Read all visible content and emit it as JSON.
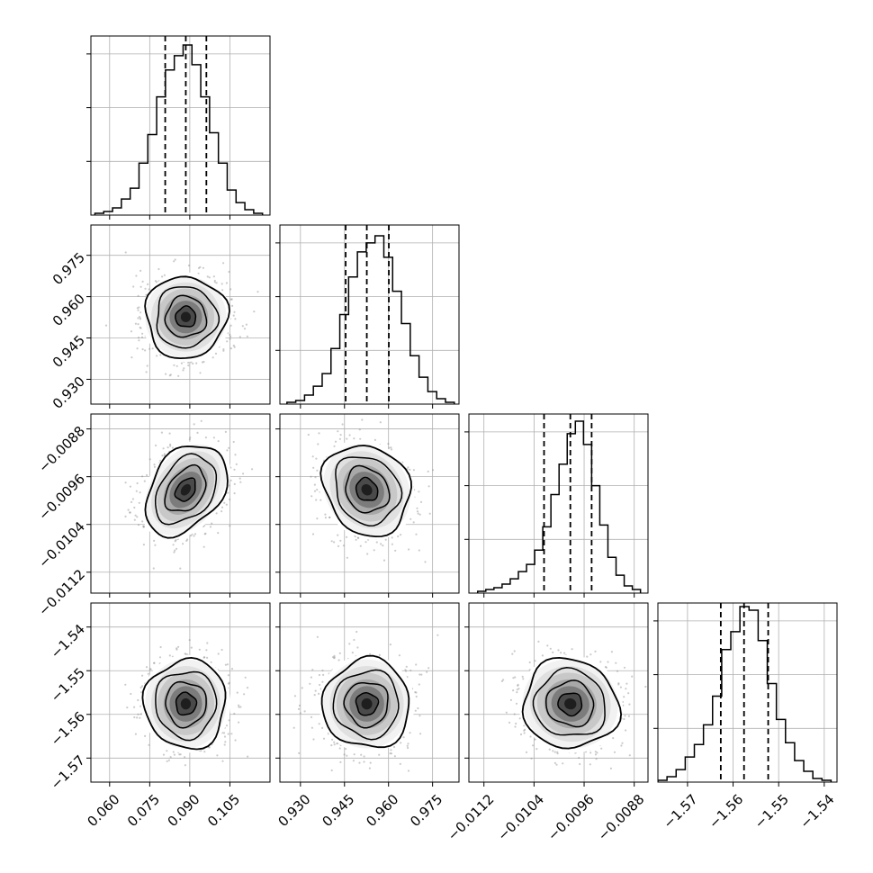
{
  "chart_data": {
    "type": "corner",
    "title": "",
    "n_params": 4,
    "grid": true,
    "parameters": [
      {
        "xlim": [
          0.053,
          0.12
        ],
        "ticks": [
          0.06,
          0.075,
          0.09,
          0.105
        ],
        "tick_labels": [
          "0.060",
          "0.075",
          "0.090",
          "0.105"
        ],
        "hist_ymax": 1.0,
        "hist_yticks": [
          0.3,
          0.6,
          0.9
        ],
        "quantiles": [
          0.0808,
          0.0885,
          0.0962
        ],
        "histogram": {
          "bin_edges": [
            0.0545,
            0.0578,
            0.0611,
            0.0644,
            0.0677,
            0.071,
            0.0743,
            0.0776,
            0.0809,
            0.0842,
            0.0875,
            0.0908,
            0.0941,
            0.0974,
            0.1007,
            0.104,
            0.1073,
            0.1106,
            0.1139,
            0.1172
          ],
          "counts": [
            0.01,
            0.02,
            0.04,
            0.09,
            0.15,
            0.29,
            0.45,
            0.66,
            0.81,
            0.89,
            0.95,
            0.84,
            0.66,
            0.46,
            0.29,
            0.14,
            0.07,
            0.03,
            0.01
          ]
        }
      },
      {
        "xlim": [
          0.923,
          0.984
        ],
        "ticks": [
          0.93,
          0.945,
          0.96,
          0.975
        ],
        "tick_labels": [
          "0.930",
          "0.945",
          "0.960",
          "0.975"
        ],
        "hist_ymax": 1.0,
        "hist_yticks": [
          0.3,
          0.6,
          0.9
        ],
        "quantiles": [
          0.9454,
          0.9526,
          0.9601
        ],
        "histogram": {
          "bin_edges": [
            0.9254,
            0.9284,
            0.9314,
            0.9344,
            0.9374,
            0.9404,
            0.9434,
            0.9464,
            0.9494,
            0.9524,
            0.9554,
            0.9584,
            0.9614,
            0.9644,
            0.9674,
            0.9704,
            0.9734,
            0.9764,
            0.9794,
            0.9824
          ],
          "counts": [
            0.01,
            0.02,
            0.05,
            0.1,
            0.17,
            0.31,
            0.5,
            0.71,
            0.85,
            0.9,
            0.94,
            0.82,
            0.63,
            0.45,
            0.27,
            0.15,
            0.07,
            0.03,
            0.01
          ]
        }
      },
      {
        "xlim": [
          -0.01144,
          -0.00858
        ],
        "ticks": [
          -0.0112,
          -0.0104,
          -0.0096,
          -0.0088
        ],
        "tick_labels": [
          "−0.0112",
          "−0.0104",
          "−0.0096",
          "−0.0088"
        ],
        "hist_ymax": 1.0,
        "hist_yticks": [
          0.3,
          0.6,
          0.9
        ],
        "quantiles": [
          -0.01024,
          -0.00982,
          -0.00948
        ],
        "histogram": {
          "bin_edges": [
            -0.0113,
            -0.01117,
            -0.01104,
            -0.01091,
            -0.01078,
            -0.01065,
            -0.01052,
            -0.01039,
            -0.01026,
            -0.01013,
            -0.01,
            -0.00987,
            -0.00974,
            -0.00961,
            -0.00948,
            -0.00935,
            -0.00922,
            -0.00909,
            -0.00896,
            -0.00883,
            -0.0087
          ],
          "counts": [
            0.01,
            0.02,
            0.03,
            0.05,
            0.08,
            0.12,
            0.16,
            0.24,
            0.37,
            0.55,
            0.72,
            0.89,
            0.96,
            0.83,
            0.6,
            0.38,
            0.2,
            0.1,
            0.04,
            0.02
          ]
        }
      },
      {
        "xlim": [
          -1.5765,
          -1.5372
        ],
        "ticks": [
          -1.57,
          -1.56,
          -1.55,
          -1.54
        ],
        "tick_labels": [
          "−1.57",
          "−1.56",
          "−1.55",
          "−1.54"
        ],
        "hist_ymax": 1.0,
        "hist_yticks": [
          0.3,
          0.6,
          0.9
        ],
        "quantiles": [
          -1.5627,
          -1.5576,
          -1.5523
        ],
        "histogram": {
          "bin_edges": [
            -1.5765,
            -1.5745,
            -1.5725,
            -1.5705,
            -1.5685,
            -1.5665,
            -1.5645,
            -1.5625,
            -1.5605,
            -1.5585,
            -1.5565,
            -1.5545,
            -1.5525,
            -1.5505,
            -1.5485,
            -1.5465,
            -1.5445,
            -1.5425,
            -1.5405,
            -1.5385
          ],
          "counts": [
            0.01,
            0.03,
            0.07,
            0.14,
            0.21,
            0.32,
            0.48,
            0.74,
            0.84,
            0.98,
            0.96,
            0.79,
            0.55,
            0.35,
            0.22,
            0.12,
            0.06,
            0.02,
            0.01
          ]
        }
      }
    ],
    "ylims_2d": [
      null,
      [
        0.921,
        0.986
      ],
      [
        -0.01155,
        -0.00855
      ],
      [
        -1.5755,
        -1.5345
      ]
    ],
    "yticks_2d": [
      null,
      [
        0.93,
        0.945,
        0.96,
        0.975
      ],
      [
        -0.0112,
        -0.0104,
        -0.0096,
        -0.0088
      ],
      [
        -1.57,
        -1.56,
        -1.55,
        -1.54
      ]
    ],
    "ytick_labels_2d": [
      null,
      [
        "0.930",
        "0.945",
        "0.960",
        "0.975"
      ],
      [
        "−0.0112",
        "−0.0104",
        "−0.0096",
        "−0.0088"
      ],
      [
        "−1.57",
        "−1.56",
        "−1.55",
        "−1.54"
      ]
    ],
    "means": [
      0.0885,
      0.9526,
      -0.00982,
      -1.5576
    ],
    "stds": [
      0.0076,
      0.0074,
      0.00038,
      0.0051
    ],
    "correlations": {
      "1_0": 0.0,
      "2_0": 0.35,
      "2_1": -0.15,
      "3_0": 0.0,
      "3_1": 0.0,
      "3_2": -0.05
    },
    "contour_sigma_levels": [
      0.5,
      1.0,
      1.5,
      2.0
    ],
    "colors": {
      "line": "#000000",
      "grid": "#b0b0b0",
      "points": "#8c8c8c",
      "density": "#000000"
    }
  }
}
